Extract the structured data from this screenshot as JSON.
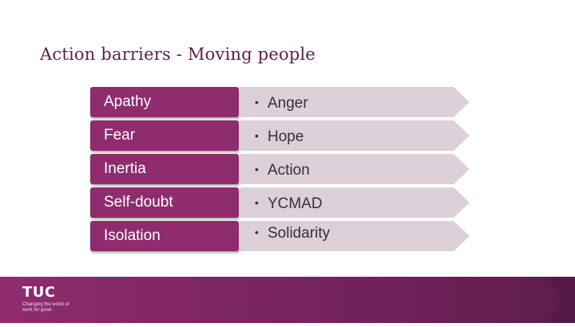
{
  "slide": {
    "title": "Action barriers - Moving people",
    "rows": [
      {
        "barrier": "Apathy",
        "response": "Anger"
      },
      {
        "barrier": "Fear",
        "response": "Hope"
      },
      {
        "barrier": "Inertia",
        "response": "Action"
      },
      {
        "barrier": "Self-doubt",
        "response": "YCMAD"
      },
      {
        "barrier": "Isolation",
        "response": "Solidarity"
      }
    ],
    "bullet": "•"
  },
  "footer": {
    "logo_text": "TUC",
    "tagline": "Changing the world of work for good."
  },
  "colors": {
    "accent": "#8e2c6e",
    "arrow_fill": "#ddd0d9",
    "footer_dark": "#5e1c4e",
    "title": "#5a1f4e"
  }
}
